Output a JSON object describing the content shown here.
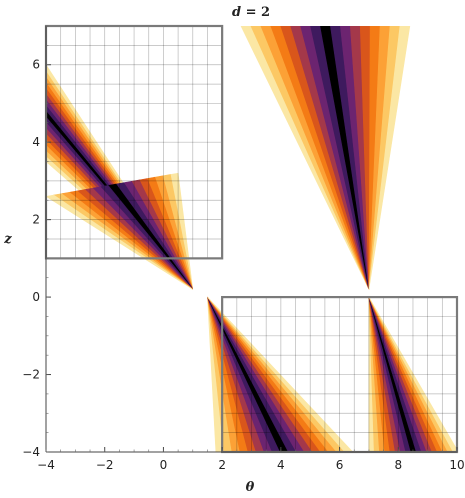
{
  "chart_data": {
    "type": "contour",
    "title": "d = 2",
    "title_parts": {
      "var": "d",
      "rest": " = 2"
    },
    "xlabel": "θ",
    "ylabel": "z",
    "xlim": [
      -4,
      10
    ],
    "ylim": [
      -4,
      7
    ],
    "x_ticks": [
      -4,
      -2,
      0,
      2,
      4,
      6,
      8,
      10
    ],
    "x_tick_labels": [
      "−4",
      "−2",
      "0",
      "2",
      "4",
      "6",
      "8",
      "10"
    ],
    "y_ticks": [
      -4,
      -2,
      0,
      2,
      4,
      6
    ],
    "y_tick_labels": [
      "−4",
      "−2",
      "0",
      "2",
      "4",
      "6"
    ],
    "colormap": [
      "#fbe7a4",
      "#fcc864",
      "#fca136",
      "#f47b15",
      "#d9561b",
      "#a4384a",
      "#6c2470",
      "#3e1a5e",
      "#000000"
    ],
    "fan_apices": [
      [
        1.0,
        0.2
      ],
      [
        7.0,
        0.2
      ],
      [
        1.5,
        0.0
      ],
      [
        7.0,
        0.0
      ]
    ],
    "boxes": [
      {
        "name": "upper-left-region",
        "x": [
          -4,
          2
        ],
        "z": [
          1,
          7
        ]
      },
      {
        "name": "lower-right-region",
        "x": [
          2,
          10
        ],
        "z": [
          -4,
          0
        ]
      }
    ]
  }
}
